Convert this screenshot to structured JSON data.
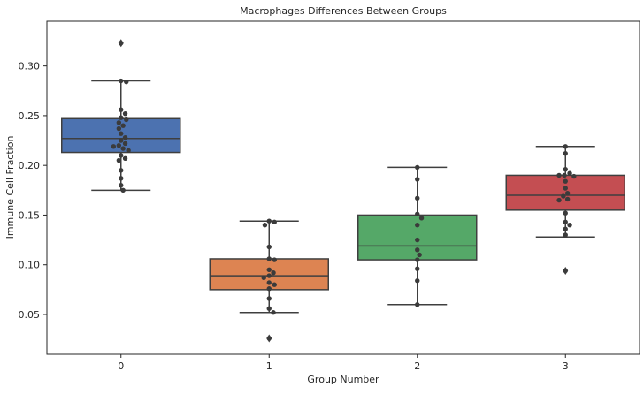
{
  "chart_data": {
    "type": "box",
    "title": "Macrophages Differences Between Groups",
    "xlabel": "Group Number",
    "ylabel": "Immune Cell Fraction",
    "categories": [
      "0",
      "1",
      "2",
      "3"
    ],
    "ylim": [
      0.01,
      0.345
    ],
    "yticks": [
      0.05,
      0.1,
      0.15,
      0.2,
      0.25,
      0.3
    ],
    "ytick_labels": [
      "0.05",
      "0.10",
      "0.15",
      "0.20",
      "0.25",
      "0.30"
    ],
    "grid": false,
    "colors": [
      "#4c72b0",
      "#dd8452",
      "#55a868",
      "#c44e52"
    ],
    "point_color": "#3b3b3b",
    "line_color": "#3f3f3f",
    "boxes": [
      {
        "category": "0",
        "q1": 0.213,
        "median": 0.227,
        "q3": 0.247,
        "whisker_low": 0.175,
        "whisker_high": 0.285,
        "outliers": [
          0.323
        ]
      },
      {
        "category": "1",
        "q1": 0.075,
        "median": 0.089,
        "q3": 0.106,
        "whisker_low": 0.052,
        "whisker_high": 0.144,
        "outliers": [
          0.026
        ]
      },
      {
        "category": "2",
        "q1": 0.105,
        "median": 0.119,
        "q3": 0.15,
        "whisker_low": 0.06,
        "whisker_high": 0.198,
        "outliers": []
      },
      {
        "category": "3",
        "q1": 0.155,
        "median": 0.17,
        "q3": 0.19,
        "whisker_low": 0.128,
        "whisker_high": 0.219,
        "outliers": [
          0.094
        ]
      }
    ],
    "points": [
      [
        0.323,
        0.285,
        0.284,
        0.256,
        0.252,
        0.248,
        0.246,
        0.243,
        0.24,
        0.237,
        0.232,
        0.228,
        0.225,
        0.222,
        0.22,
        0.219,
        0.217,
        0.215,
        0.21,
        0.207,
        0.205,
        0.195,
        0.187,
        0.18,
        0.175
      ],
      [
        0.144,
        0.143,
        0.14,
        0.118,
        0.106,
        0.105,
        0.095,
        0.092,
        0.089,
        0.087,
        0.082,
        0.08,
        0.076,
        0.066,
        0.056,
        0.052,
        0.026
      ],
      [
        0.198,
        0.186,
        0.167,
        0.151,
        0.147,
        0.14,
        0.125,
        0.115,
        0.11,
        0.105,
        0.096,
        0.084,
        0.06
      ],
      [
        0.219,
        0.212,
        0.196,
        0.192,
        0.19,
        0.19,
        0.189,
        0.184,
        0.177,
        0.172,
        0.169,
        0.166,
        0.165,
        0.152,
        0.143,
        0.14,
        0.136,
        0.13,
        0.094
      ]
    ]
  }
}
